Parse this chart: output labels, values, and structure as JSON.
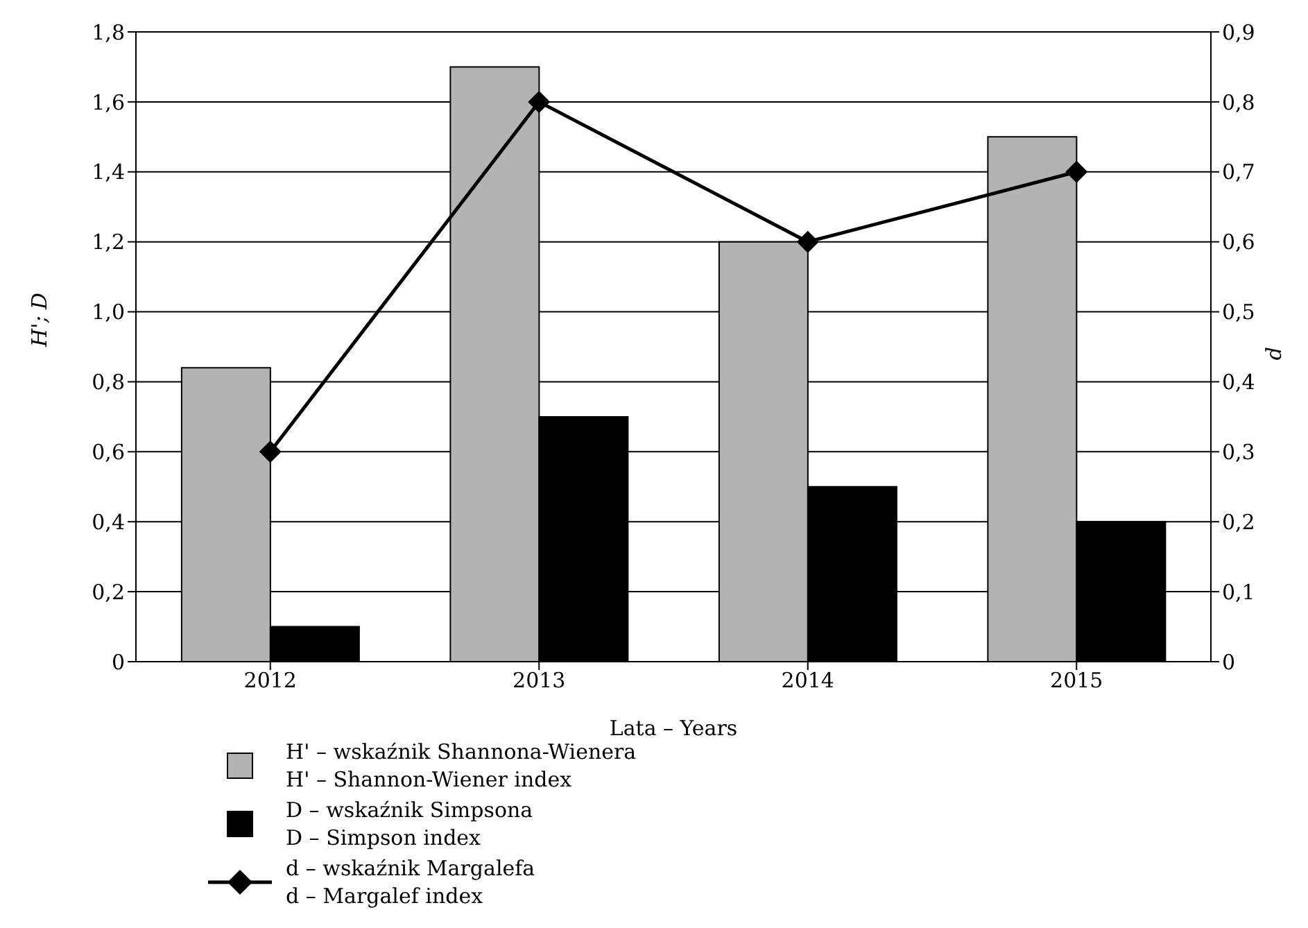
{
  "chart_data": {
    "type": "bar",
    "categories": [
      "2012",
      "2013",
      "2014",
      "2015"
    ],
    "xlabel": "Lata – Years",
    "ylabel": "H'; D",
    "y2label": "d",
    "series": [
      {
        "name": "H' – wskaźnik Shannona-Wienera\nH' – Shannon-Wiener index",
        "color": "#b3b3b3",
        "values": [
          0.84,
          1.7,
          1.2,
          1.5
        ]
      },
      {
        "name": "D – wskaźnik Simpsona\nD – Simpson index",
        "color": "#000000",
        "values": [
          0.1,
          0.7,
          0.5,
          0.4
        ]
      },
      {
        "name": "d – wskaźnik Margalefa\nd – Margalef index",
        "color": "#000000",
        "type": "line",
        "axis": "y2",
        "marker": "diamond",
        "values": [
          0.3,
          0.8,
          0.6,
          0.7
        ]
      }
    ],
    "ylim": [
      0,
      1.8
    ],
    "yticks": [
      0,
      {
        "value": 0.2,
        "label": "0,2"
      },
      {
        "value": 0.4,
        "label": "0,4"
      },
      {
        "value": 0.6,
        "label": "0,6"
      },
      {
        "value": 0.8,
        "label": "0,8"
      },
      {
        "value": 1.0,
        "label": "1,0"
      },
      {
        "value": 1.2,
        "label": "1,2"
      },
      {
        "value": 1.4,
        "label": "1,4"
      },
      {
        "value": 1.6,
        "label": "1,6"
      },
      {
        "value": 1.8,
        "label": "1,8"
      }
    ],
    "y2lim": [
      0,
      0.9
    ],
    "y2ticks": [
      0,
      {
        "value": 0.1,
        "label": "0,1"
      },
      {
        "value": 0.2,
        "label": "0,2"
      },
      {
        "value": 0.3,
        "label": "0,3"
      },
      {
        "value": 0.4,
        "label": "0,4"
      },
      {
        "value": 0.5,
        "label": "0,5"
      },
      {
        "value": 0.6,
        "label": "0,6"
      },
      {
        "value": 0.7,
        "label": "0,7"
      },
      {
        "value": 0.8,
        "label": "0,8"
      },
      {
        "value": 0.9,
        "label": "0,9"
      }
    ],
    "grid": "y",
    "legend": "bottom left"
  }
}
